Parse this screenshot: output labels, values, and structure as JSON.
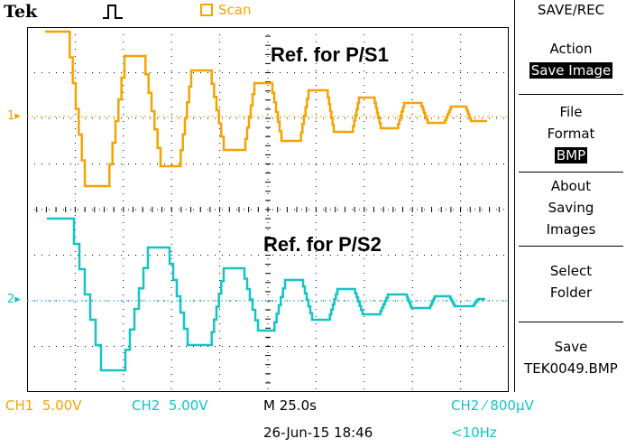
{
  "header": {
    "brand": "Tek",
    "trigger_icon": "pulse-icon",
    "scan_label": "Scan"
  },
  "colors": {
    "ch1": "#f5a300",
    "ch2": "#14c4c4",
    "grid": "#000000"
  },
  "display": {
    "ch1_marker": "1",
    "ch2_marker": "2",
    "label_ch1": "Ref. for P/S1",
    "label_ch2": "Ref. for P/S2"
  },
  "menu": {
    "title": "SAVE/REC",
    "items": [
      {
        "lines": [
          "Action"
        ],
        "highlight": "Save Image"
      },
      {
        "lines": [
          "File",
          "Format"
        ],
        "highlight": "BMP"
      },
      {
        "lines": [
          "About",
          "Saving",
          "Images"
        ],
        "highlight": ""
      },
      {
        "lines": [
          "Select",
          "Folder"
        ],
        "highlight": ""
      },
      {
        "lines": [
          "Save"
        ],
        "highlight": "",
        "value": "TEK0049.BMP"
      }
    ]
  },
  "status": {
    "ch1": "CH1",
    "ch1_scale": "5.00V",
    "ch2": "CH2",
    "ch2_scale": "5.00V",
    "timebase": "M 25.0s",
    "trigger": "CH2 ⁄ 800µV",
    "date": "26-Jun-15 18:46",
    "freq": "<10Hz"
  }
}
